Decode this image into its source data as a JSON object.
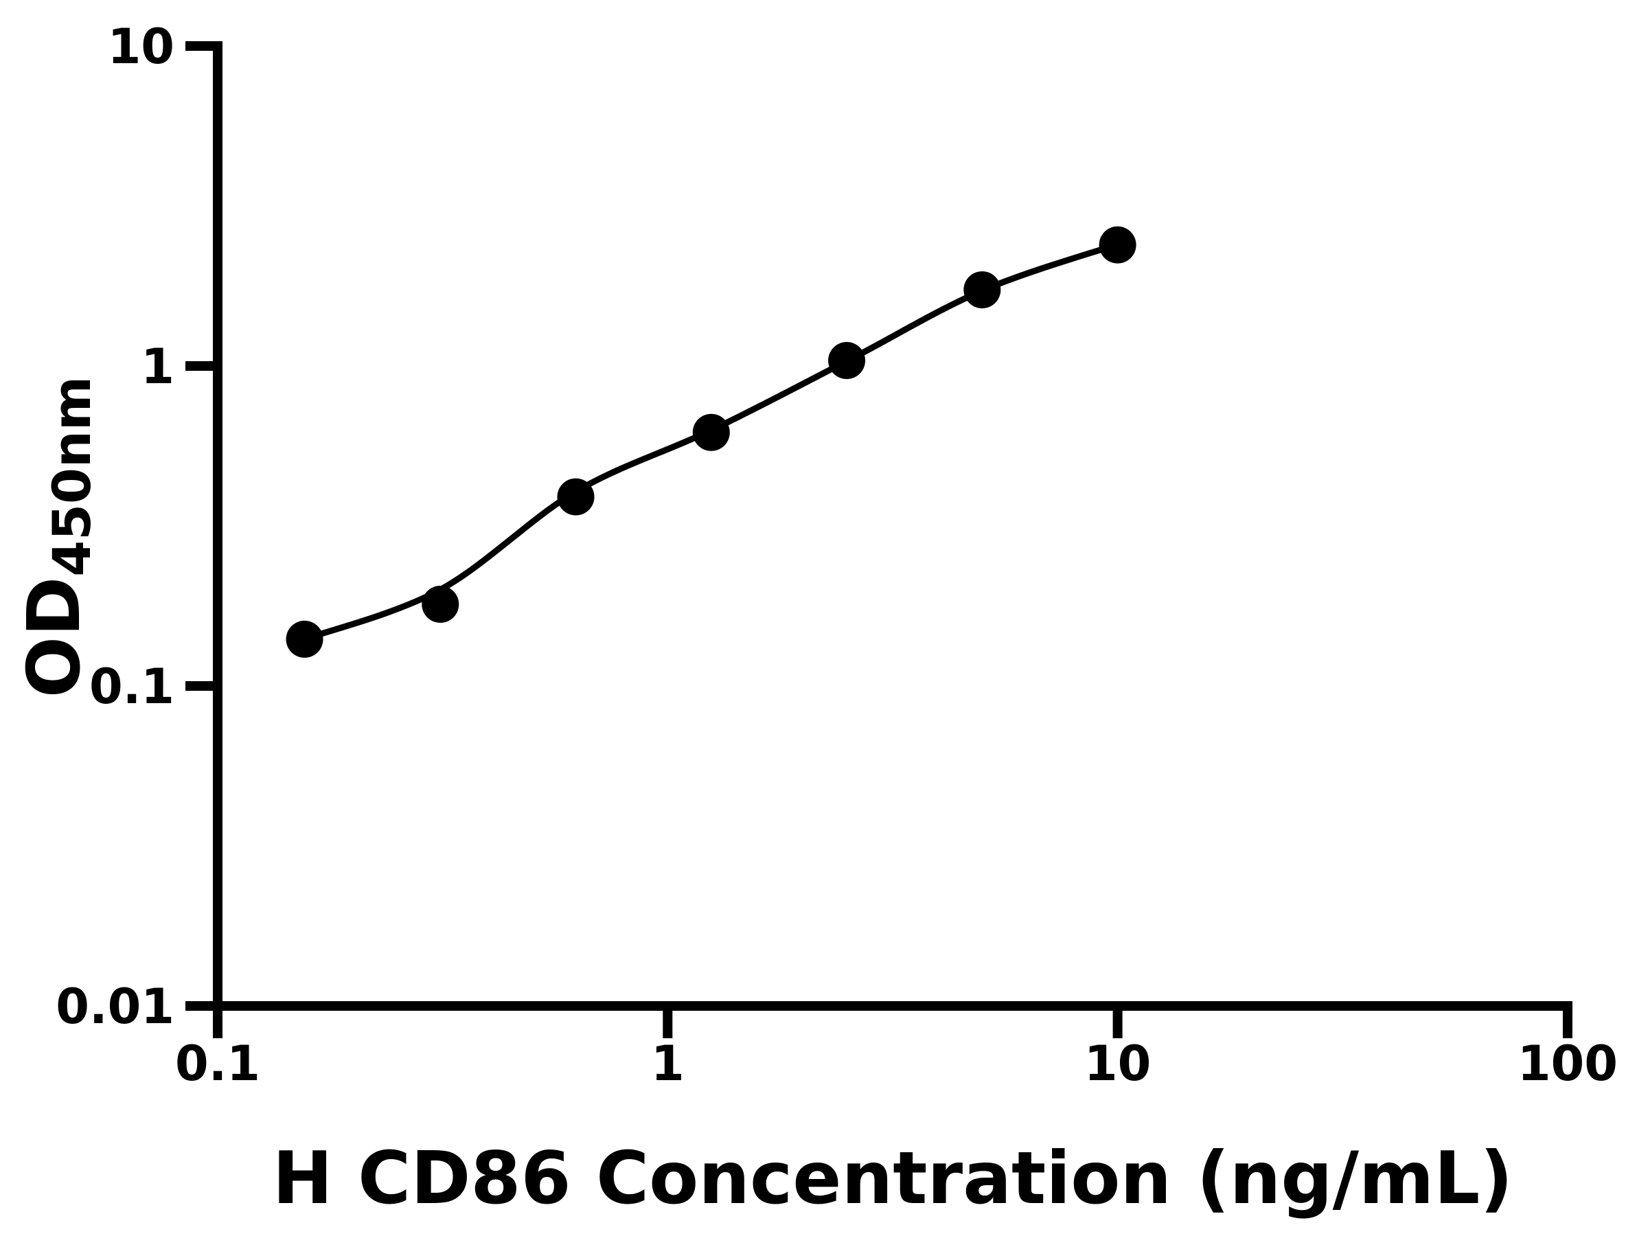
{
  "chart_data": {
    "type": "scatter",
    "title": "",
    "xlabel": "H CD86 Concentration (ng/mL)",
    "ylabel": "OD450nm",
    "ylabel_main": "OD",
    "ylabel_sub": "450nm",
    "x_scale": "log",
    "y_scale": "log",
    "xlim": [
      0.1,
      100
    ],
    "ylim": [
      0.01,
      10
    ],
    "grid": "off",
    "legend": "none",
    "x_ticks": [
      {
        "value": 0.1,
        "label": "0.1"
      },
      {
        "value": 1,
        "label": "1"
      },
      {
        "value": 10,
        "label": "10"
      },
      {
        "value": 100,
        "label": "100"
      }
    ],
    "y_ticks": [
      {
        "value": 0.01,
        "label": "0.01"
      },
      {
        "value": 0.1,
        "label": "0.1"
      },
      {
        "value": 1,
        "label": "1"
      },
      {
        "value": 10,
        "label": "10"
      }
    ],
    "series": [
      {
        "name": "standard-curve-points",
        "marker": "circle",
        "color": "#000000",
        "x": [
          0.156,
          0.3125,
          0.625,
          1.25,
          2.5,
          5,
          10
        ],
        "y": [
          0.14,
          0.18,
          0.39,
          0.62,
          1.04,
          1.73,
          2.39
        ]
      }
    ],
    "fit_curve": {
      "name": "four-parameter-fit-line",
      "color": "#000000",
      "x": [
        0.156,
        0.3125,
        0.625,
        1.25,
        2.5,
        5,
        10
      ],
      "y": [
        0.14,
        0.2,
        0.405,
        0.63,
        1.035,
        1.72,
        2.4
      ]
    },
    "colors": {
      "foreground": "#000000",
      "background": "#ffffff"
    }
  }
}
